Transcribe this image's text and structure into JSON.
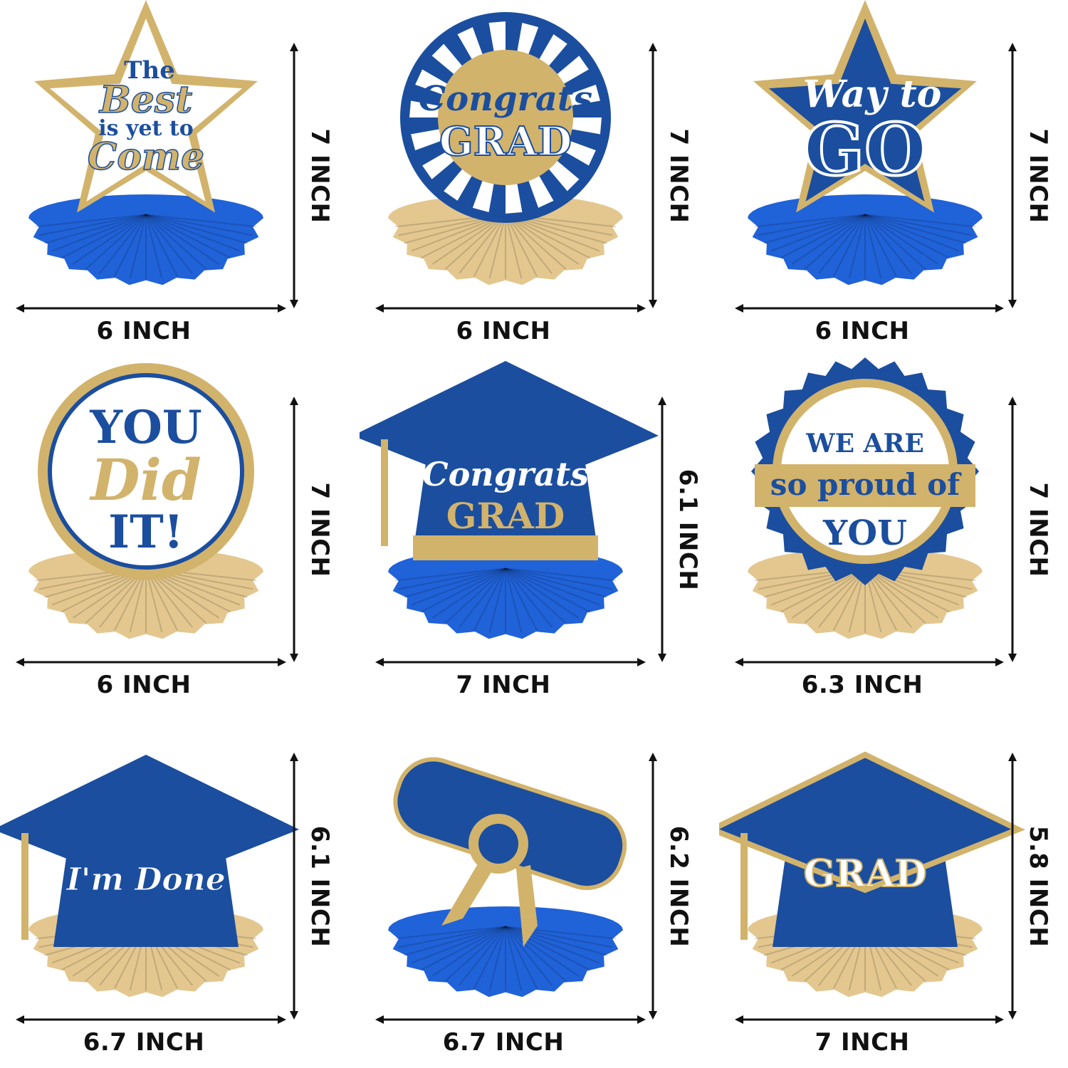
{
  "colors": {
    "blue": "#1b4e9e",
    "honeycomb_blue": "#2062d8",
    "gold": "#d2b36c",
    "honeycomb_gold": "#e3c78f",
    "white": "#ffffff",
    "arrow": "#111111"
  },
  "items": [
    {
      "name": "best-is-yet-to-come",
      "shape": "star",
      "sign_style": "white",
      "base": "blue",
      "lines": [
        "The",
        "Best",
        "is yet to",
        "Come"
      ],
      "width": "6 INCH",
      "height": "7 INCH"
    },
    {
      "name": "congrats-grad-circle",
      "shape": "rays-circle",
      "sign_style": "rays",
      "base": "gold",
      "lines": [
        "Congrats",
        "GRAD"
      ],
      "width": "6 INCH",
      "height": "7 INCH"
    },
    {
      "name": "way-to-go",
      "shape": "star",
      "sign_style": "blue",
      "base": "blue",
      "lines": [
        "Way to",
        "GO"
      ],
      "width": "6 INCH",
      "height": "7 INCH"
    },
    {
      "name": "you-did-it",
      "shape": "circle",
      "sign_style": "white",
      "base": "gold",
      "lines": [
        "YOU",
        "Did",
        "IT!"
      ],
      "width": "6 INCH",
      "height": "7 INCH"
    },
    {
      "name": "congrats-grad-cap",
      "shape": "cap",
      "sign_style": "blue",
      "base": "blue",
      "lines": [
        "Congrats",
        "GRAD"
      ],
      "width": "7 INCH",
      "height": "6.1 INCH"
    },
    {
      "name": "so-proud-of-you",
      "shape": "badge",
      "sign_style": "white",
      "base": "gold",
      "lines": [
        "WE ARE",
        "so proud of",
        "YOU"
      ],
      "width": "6.3 INCH",
      "height": "7 INCH"
    },
    {
      "name": "im-done-cap",
      "shape": "cap",
      "sign_style": "blue",
      "base": "gold",
      "lines": [
        "I'm Done"
      ],
      "width": "6.7 INCH",
      "height": "6.1 INCH"
    },
    {
      "name": "diploma",
      "shape": "diploma",
      "sign_style": "blue",
      "base": "blue",
      "lines": [],
      "width": "6.7 INCH",
      "height": "6.2 INCH"
    },
    {
      "name": "grad-cap",
      "shape": "cap",
      "sign_style": "blue",
      "base": "gold",
      "lines": [
        "GRAD"
      ],
      "width": "7 INCH",
      "height": "5.8 INCH"
    }
  ]
}
